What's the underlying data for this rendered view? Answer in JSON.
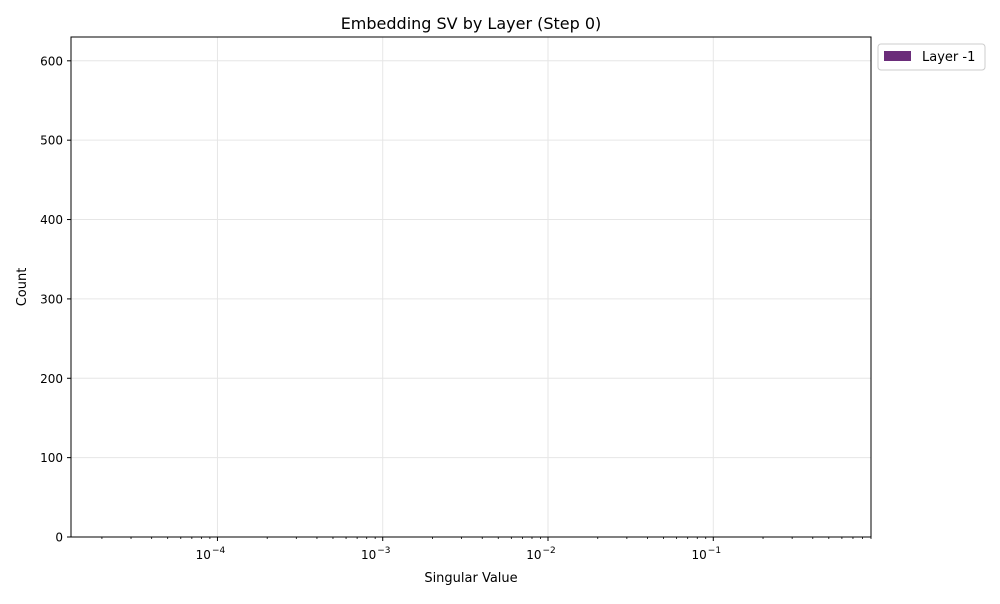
{
  "chart_data": {
    "type": "bar",
    "title": "Embedding SV by Layer (Step 0)",
    "xlabel": "Singular Value",
    "ylabel": "Count",
    "xscale": "log",
    "xlim": [
      1.3e-05,
      0.9
    ],
    "ylim": [
      0,
      630
    ],
    "x_ticks": [
      {
        "value": 0.0001,
        "base": "10",
        "exp": "−4"
      },
      {
        "value": 0.001,
        "base": "10",
        "exp": "−3"
      },
      {
        "value": 0.01,
        "base": "10",
        "exp": "−2"
      },
      {
        "value": 0.1,
        "base": "10",
        "exp": "−1"
      }
    ],
    "y_ticks": [
      0,
      100,
      200,
      300,
      400,
      500,
      600
    ],
    "grid": true,
    "legend_position": "outside top-right",
    "series": [
      {
        "name": "Layer -1",
        "color": "#6b2d7a",
        "values": []
      }
    ]
  }
}
